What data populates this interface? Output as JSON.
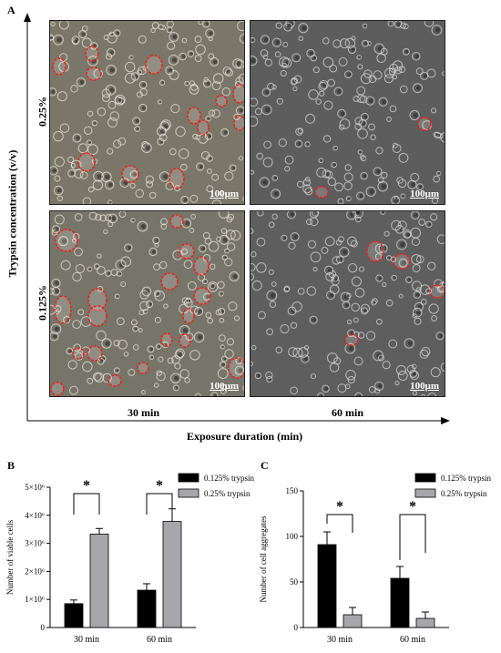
{
  "panel_a": {
    "letter": "A",
    "y_axis_title": "Trypsin concentration (v/v)",
    "x_axis_title": "Exposure duration (min)",
    "rows": [
      "0.25%",
      "0.125%"
    ],
    "cols": [
      "30 min",
      "60 min"
    ],
    "scale_bar": "100μm"
  },
  "panel_b": {
    "letter": "B"
  },
  "panel_c": {
    "letter": "C"
  },
  "colors": {
    "dark": "#000000",
    "gray": "#a6a6ab",
    "outline": "#e8231c"
  },
  "chart_data": [
    {
      "type": "bar",
      "categories": [
        "30 min",
        "60 min"
      ],
      "ylabel": "Number of viable cells",
      "ylim": [
        0,
        5000000
      ],
      "y_ticks": [
        "0",
        "1×10⁶",
        "2×10⁶",
        "3×10⁶",
        "4×10⁶",
        "5×10⁶"
      ],
      "series": [
        {
          "name": "0.125% trypsin",
          "color": "#000000",
          "values": [
            850000,
            1330000
          ],
          "errors": [
            130000,
            230000
          ]
        },
        {
          "name": "0.25%  trypsin",
          "color": "#a6a6ab",
          "values": [
            3330000,
            3780000
          ],
          "errors": [
            200000,
            450000
          ]
        }
      ],
      "significance": [
        "*",
        "*"
      ],
      "legend_position": "top-right"
    },
    {
      "type": "bar",
      "categories": [
        "30 min",
        "60 min"
      ],
      "ylabel": "Number of cell aggregates",
      "ylim": [
        0,
        150
      ],
      "y_ticks": [
        "0",
        "50",
        "100",
        "150"
      ],
      "series": [
        {
          "name": "0.125% trypsin",
          "color": "#000000",
          "values": [
            91,
            54
          ],
          "errors": [
            14,
            13
          ]
        },
        {
          "name": "0.25%  trypsin",
          "color": "#a6a6ab",
          "values": [
            14,
            10
          ],
          "errors": [
            8,
            7
          ]
        }
      ],
      "significance": [
        "*",
        "*"
      ],
      "legend_position": "top-right"
    }
  ]
}
